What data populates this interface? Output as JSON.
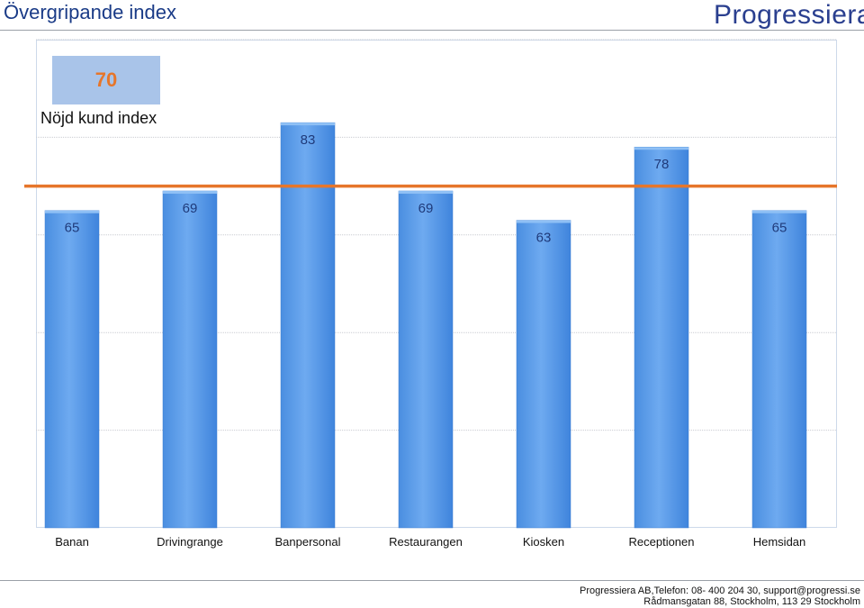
{
  "header": {
    "title": "Övergripande index",
    "logo_text": "Progressiera"
  },
  "kpi": {
    "value": "70",
    "label": "Nöjd kund index"
  },
  "chart_data": {
    "type": "bar",
    "title": "",
    "xlabel": "",
    "ylabel": "",
    "categories": [
      "Banan",
      "Drivingrange",
      "Banpersonal",
      "Restaurangen",
      "Kiosken",
      "Receptionen",
      "Hemsidan"
    ],
    "values": [
      65,
      69,
      83,
      69,
      63,
      78,
      65
    ],
    "ylim": [
      0,
      100
    ],
    "gridlines": [
      20,
      40,
      60,
      80,
      100
    ],
    "reference_line": {
      "value": 70,
      "color": "#e6762b"
    },
    "bar_color": "#5b9be6",
    "label_color": "#1f3a7a"
  },
  "footer": {
    "line1": "Progressiera AB,Telefon: 08-  400 204 30, support@progressi.se",
    "line2": "Rådmansgatan 88, Stockholm, 113 29 Stockholm"
  }
}
